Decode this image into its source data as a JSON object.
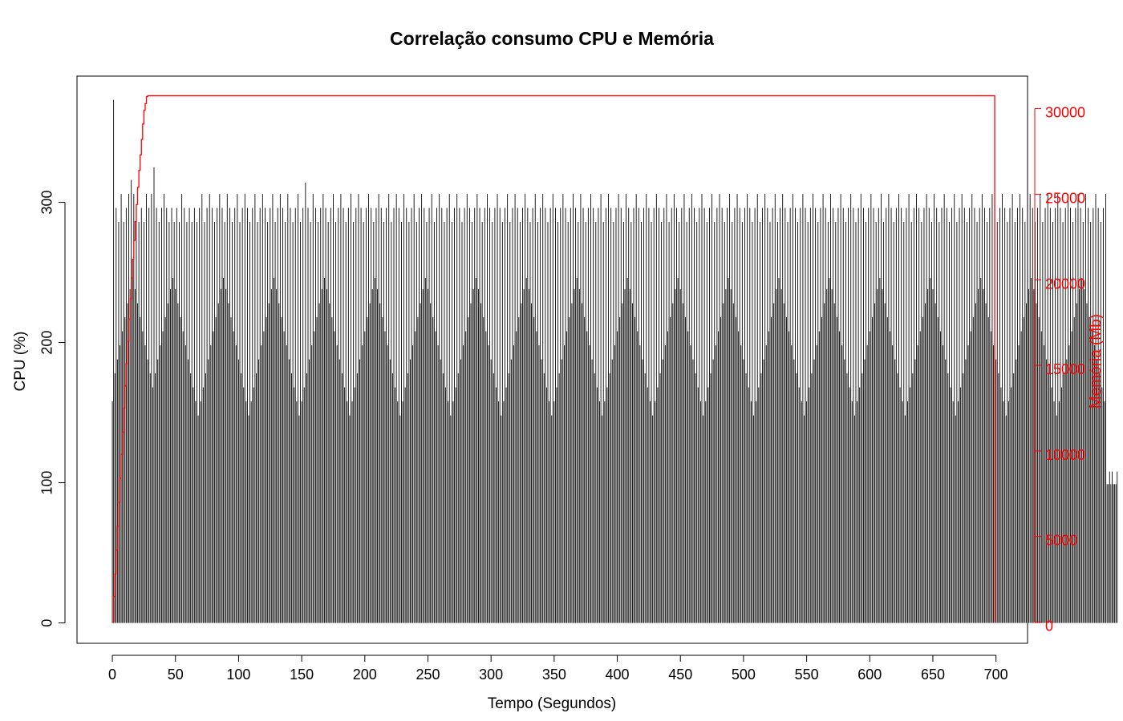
{
  "chart_data": {
    "type": "bar",
    "title": "Correlação consumo CPU e Memória",
    "xlabel": "Tempo (Segundos)",
    "ylabel": "CPU (%)",
    "ylabel_right": "Memória (Mb)",
    "xlim": [
      -28,
      725
    ],
    "ylim": [
      -14.5,
      390
    ],
    "ylim_right": [
      -1240,
      31900
    ],
    "x_ticks": [
      0,
      50,
      100,
      150,
      200,
      250,
      300,
      350,
      400,
      450,
      500,
      550,
      600,
      650,
      700
    ],
    "y_ticks": [
      0,
      100,
      200,
      300
    ],
    "y_ticks_right": [
      0,
      5000,
      10000,
      15000,
      20000,
      25000,
      30000
    ],
    "grid": false,
    "series": [
      {
        "name": "CPU (%)",
        "type": "bar",
        "color": "#000000",
        "x_step": 1,
        "x_start": 0,
        "values": [
          158,
          373,
          178,
          296,
          188,
          286,
          198,
          306,
          208,
          286,
          218,
          296,
          228,
          306,
          238,
          316,
          246,
          306,
          238,
          296,
          228,
          286,
          218,
          296,
          208,
          286,
          198,
          306,
          188,
          296,
          178,
          306,
          168,
          325,
          178,
          296,
          188,
          286,
          198,
          296,
          208,
          306,
          218,
          296,
          228,
          286,
          238,
          296,
          246,
          286,
          238,
          296,
          228,
          286,
          218,
          306,
          208,
          296,
          198,
          286,
          188,
          296,
          178,
          286,
          168,
          296,
          158,
          286,
          148,
          296,
          158,
          306,
          168,
          286,
          178,
          296,
          188,
          306,
          198,
          296,
          208,
          286,
          218,
          296,
          228,
          306,
          238,
          296,
          246,
          286,
          238,
          306,
          228,
          296,
          218,
          286,
          208,
          296,
          198,
          306,
          188,
          286,
          178,
          296,
          168,
          306,
          158,
          296,
          148,
          286,
          158,
          296,
          168,
          306,
          178,
          286,
          188,
          296,
          198,
          306,
          208,
          296,
          218,
          286,
          228,
          296,
          238,
          306,
          246,
          286,
          238,
          296,
          228,
          306,
          218,
          296,
          208,
          286,
          198,
          306,
          188,
          296,
          178,
          286,
          168,
          296,
          158,
          306,
          148,
          286,
          158,
          296,
          168,
          314,
          178,
          296,
          188,
          286,
          198,
          306,
          208,
          296,
          218,
          286,
          228,
          296,
          238,
          306,
          246,
          296,
          238,
          286,
          228,
          296,
          218,
          306,
          208,
          286,
          198,
          296,
          188,
          306,
          178,
          296,
          168,
          286,
          158,
          296,
          148,
          306,
          158,
          286,
          168,
          296,
          178,
          306,
          188,
          296,
          198,
          286,
          208,
          296,
          218,
          306,
          228,
          296,
          238,
          286,
          246,
          296,
          238,
          306,
          228,
          296,
          218,
          286,
          208,
          296,
          198,
          306,
          188,
          286,
          178,
          296,
          168,
          306,
          158,
          296,
          148,
          286,
          158,
          306,
          168,
          296,
          178,
          286,
          188,
          296,
          198,
          306,
          208,
          286,
          218,
          296,
          228,
          306,
          238,
          296,
          246,
          286,
          238,
          296,
          228,
          306,
          218,
          286,
          208,
          296,
          198,
          306,
          188,
          296,
          178,
          286,
          168,
          296,
          158,
          306,
          148,
          286,
          158,
          296,
          168,
          306,
          178,
          296,
          188,
          286,
          198,
          296,
          208,
          306,
          218,
          296,
          228,
          286,
          238,
          296,
          246,
          306,
          238,
          296,
          228,
          286,
          218,
          296,
          208,
          306,
          198,
          296,
          188,
          286,
          178,
          296,
          168,
          306,
          158,
          296,
          148,
          286,
          158,
          296,
          168,
          306,
          178,
          286,
          188,
          296,
          198,
          306,
          208,
          296,
          218,
          286,
          228,
          296,
          238,
          306,
          246,
          296,
          238,
          286,
          228,
          296,
          218,
          306,
          208,
          286,
          198,
          296,
          188,
          306,
          178,
          296,
          168,
          286,
          158,
          296,
          148,
          306,
          158,
          296,
          168,
          286,
          178,
          296,
          188,
          306,
          198,
          296,
          208,
          286,
          218,
          296,
          228,
          306,
          238,
          296,
          246,
          286,
          238,
          306,
          228,
          296,
          218,
          286,
          208,
          296,
          198,
          306,
          188,
          296,
          178,
          286,
          168,
          296,
          158,
          306,
          148,
          286,
          158,
          296,
          168,
          306,
          178,
          296,
          188,
          286,
          198,
          296,
          208,
          306,
          218,
          296,
          228,
          286,
          238,
          306,
          246,
          296,
          238,
          286,
          228,
          296,
          218,
          306,
          208,
          296,
          198,
          286,
          188,
          296,
          178,
          306,
          168,
          296,
          158,
          286,
          148,
          296,
          158,
          306,
          168,
          296,
          178,
          286,
          188,
          296,
          198,
          306,
          208,
          286,
          218,
          296,
          228,
          306,
          238,
          296,
          246,
          286,
          238,
          296,
          228,
          306,
          218,
          286,
          208,
          296,
          198,
          306,
          188,
          296,
          178,
          286,
          168,
          296,
          158,
          306,
          148,
          296,
          158,
          286,
          168,
          296,
          178,
          306,
          188,
          286,
          198,
          296,
          208,
          306,
          218,
          296,
          228,
          286,
          238,
          296,
          246,
          306,
          238,
          286,
          228,
          296,
          218,
          306,
          208,
          296,
          198,
          286,
          188,
          296,
          178,
          306,
          168,
          296,
          158,
          286,
          148,
          296,
          158,
          306,
          168,
          286,
          178,
          296,
          188,
          306,
          198,
          296,
          208,
          286,
          218,
          296,
          228,
          306,
          238,
          286,
          246,
          296,
          238,
          306,
          228,
          296,
          218,
          286,
          208,
          296,
          198,
          306,
          188,
          296,
          178,
          286,
          168,
          296,
          158,
          306,
          148,
          296,
          158,
          286,
          168,
          296,
          178,
          306,
          188,
          296,
          198,
          286,
          208,
          296,
          218,
          306,
          228,
          296,
          238,
          286,
          246,
          306,
          238,
          296,
          228,
          286,
          218,
          296,
          208,
          306,
          198,
          296,
          188,
          286,
          178,
          296,
          168,
          306,
          158,
          296,
          148,
          286,
          158,
          296,
          168,
          306,
          178,
          296,
          188,
          286,
          198,
          296,
          208,
          306,
          218,
          296,
          228,
          286,
          238,
          296,
          246,
          306,
          238,
          286,
          228,
          296,
          218,
          306,
          208,
          296,
          198,
          286,
          188,
          296,
          178,
          306,
          168,
          296,
          158,
          286,
          148,
          296,
          158,
          306,
          168,
          286,
          178,
          296,
          188,
          306,
          198,
          296,
          208,
          286,
          218,
          296,
          228,
          306,
          238,
          296,
          246,
          286,
          238,
          306,
          228,
          296,
          218,
          286,
          208,
          296,
          198,
          306,
          188,
          296,
          178,
          286,
          168,
          296,
          158,
          306,
          148,
          286,
          158,
          296,
          168,
          306,
          178,
          296,
          188,
          286,
          198,
          296,
          208,
          306,
          218,
          296,
          228,
          286,
          238,
          296,
          246,
          306,
          238,
          296,
          228,
          286,
          218,
          296,
          208,
          306,
          198,
          296,
          188,
          286,
          178,
          296,
          168,
          306,
          158,
          296,
          148,
          286,
          158,
          296,
          168,
          306,
          178,
          286,
          188,
          296,
          198,
          306,
          208,
          296,
          218,
          286,
          228,
          296,
          238,
          306,
          246,
          296,
          238,
          286,
          228,
          296,
          218,
          306,
          208,
          286,
          198,
          296,
          188,
          306,
          178,
          296,
          168,
          286,
          158,
          296,
          148,
          306,
          158,
          296,
          168,
          286,
          178,
          296,
          188,
          306,
          198,
          296,
          208,
          286,
          218,
          296,
          228,
          306,
          238,
          296,
          246,
          286,
          238,
          306,
          228,
          296,
          218,
          286,
          208,
          296,
          198,
          306,
          188,
          296,
          178,
          286,
          168,
          296,
          158,
          306,
          99,
          99,
          108,
          99,
          108,
          99,
          99,
          99,
          108
        ]
      },
      {
        "name": "Memória (Mb)",
        "type": "line",
        "color": "#ff0000",
        "axis": "right",
        "x": [
          0,
          1,
          2,
          3,
          4,
          5,
          6,
          7,
          8,
          9,
          10,
          11,
          12,
          13,
          14,
          15,
          16,
          17,
          18,
          19,
          20,
          21,
          22,
          23,
          24,
          25,
          26,
          27,
          28,
          698,
          699
        ],
        "values": [
          0,
          1500,
          2800,
          4200,
          5600,
          7000,
          8400,
          9800,
          11100,
          12500,
          13800,
          15100,
          16400,
          17700,
          18900,
          20100,
          21200,
          22300,
          23400,
          24400,
          25400,
          26400,
          27300,
          28200,
          29100,
          29900,
          30300,
          30700,
          30750,
          30750,
          0
        ]
      }
    ]
  }
}
